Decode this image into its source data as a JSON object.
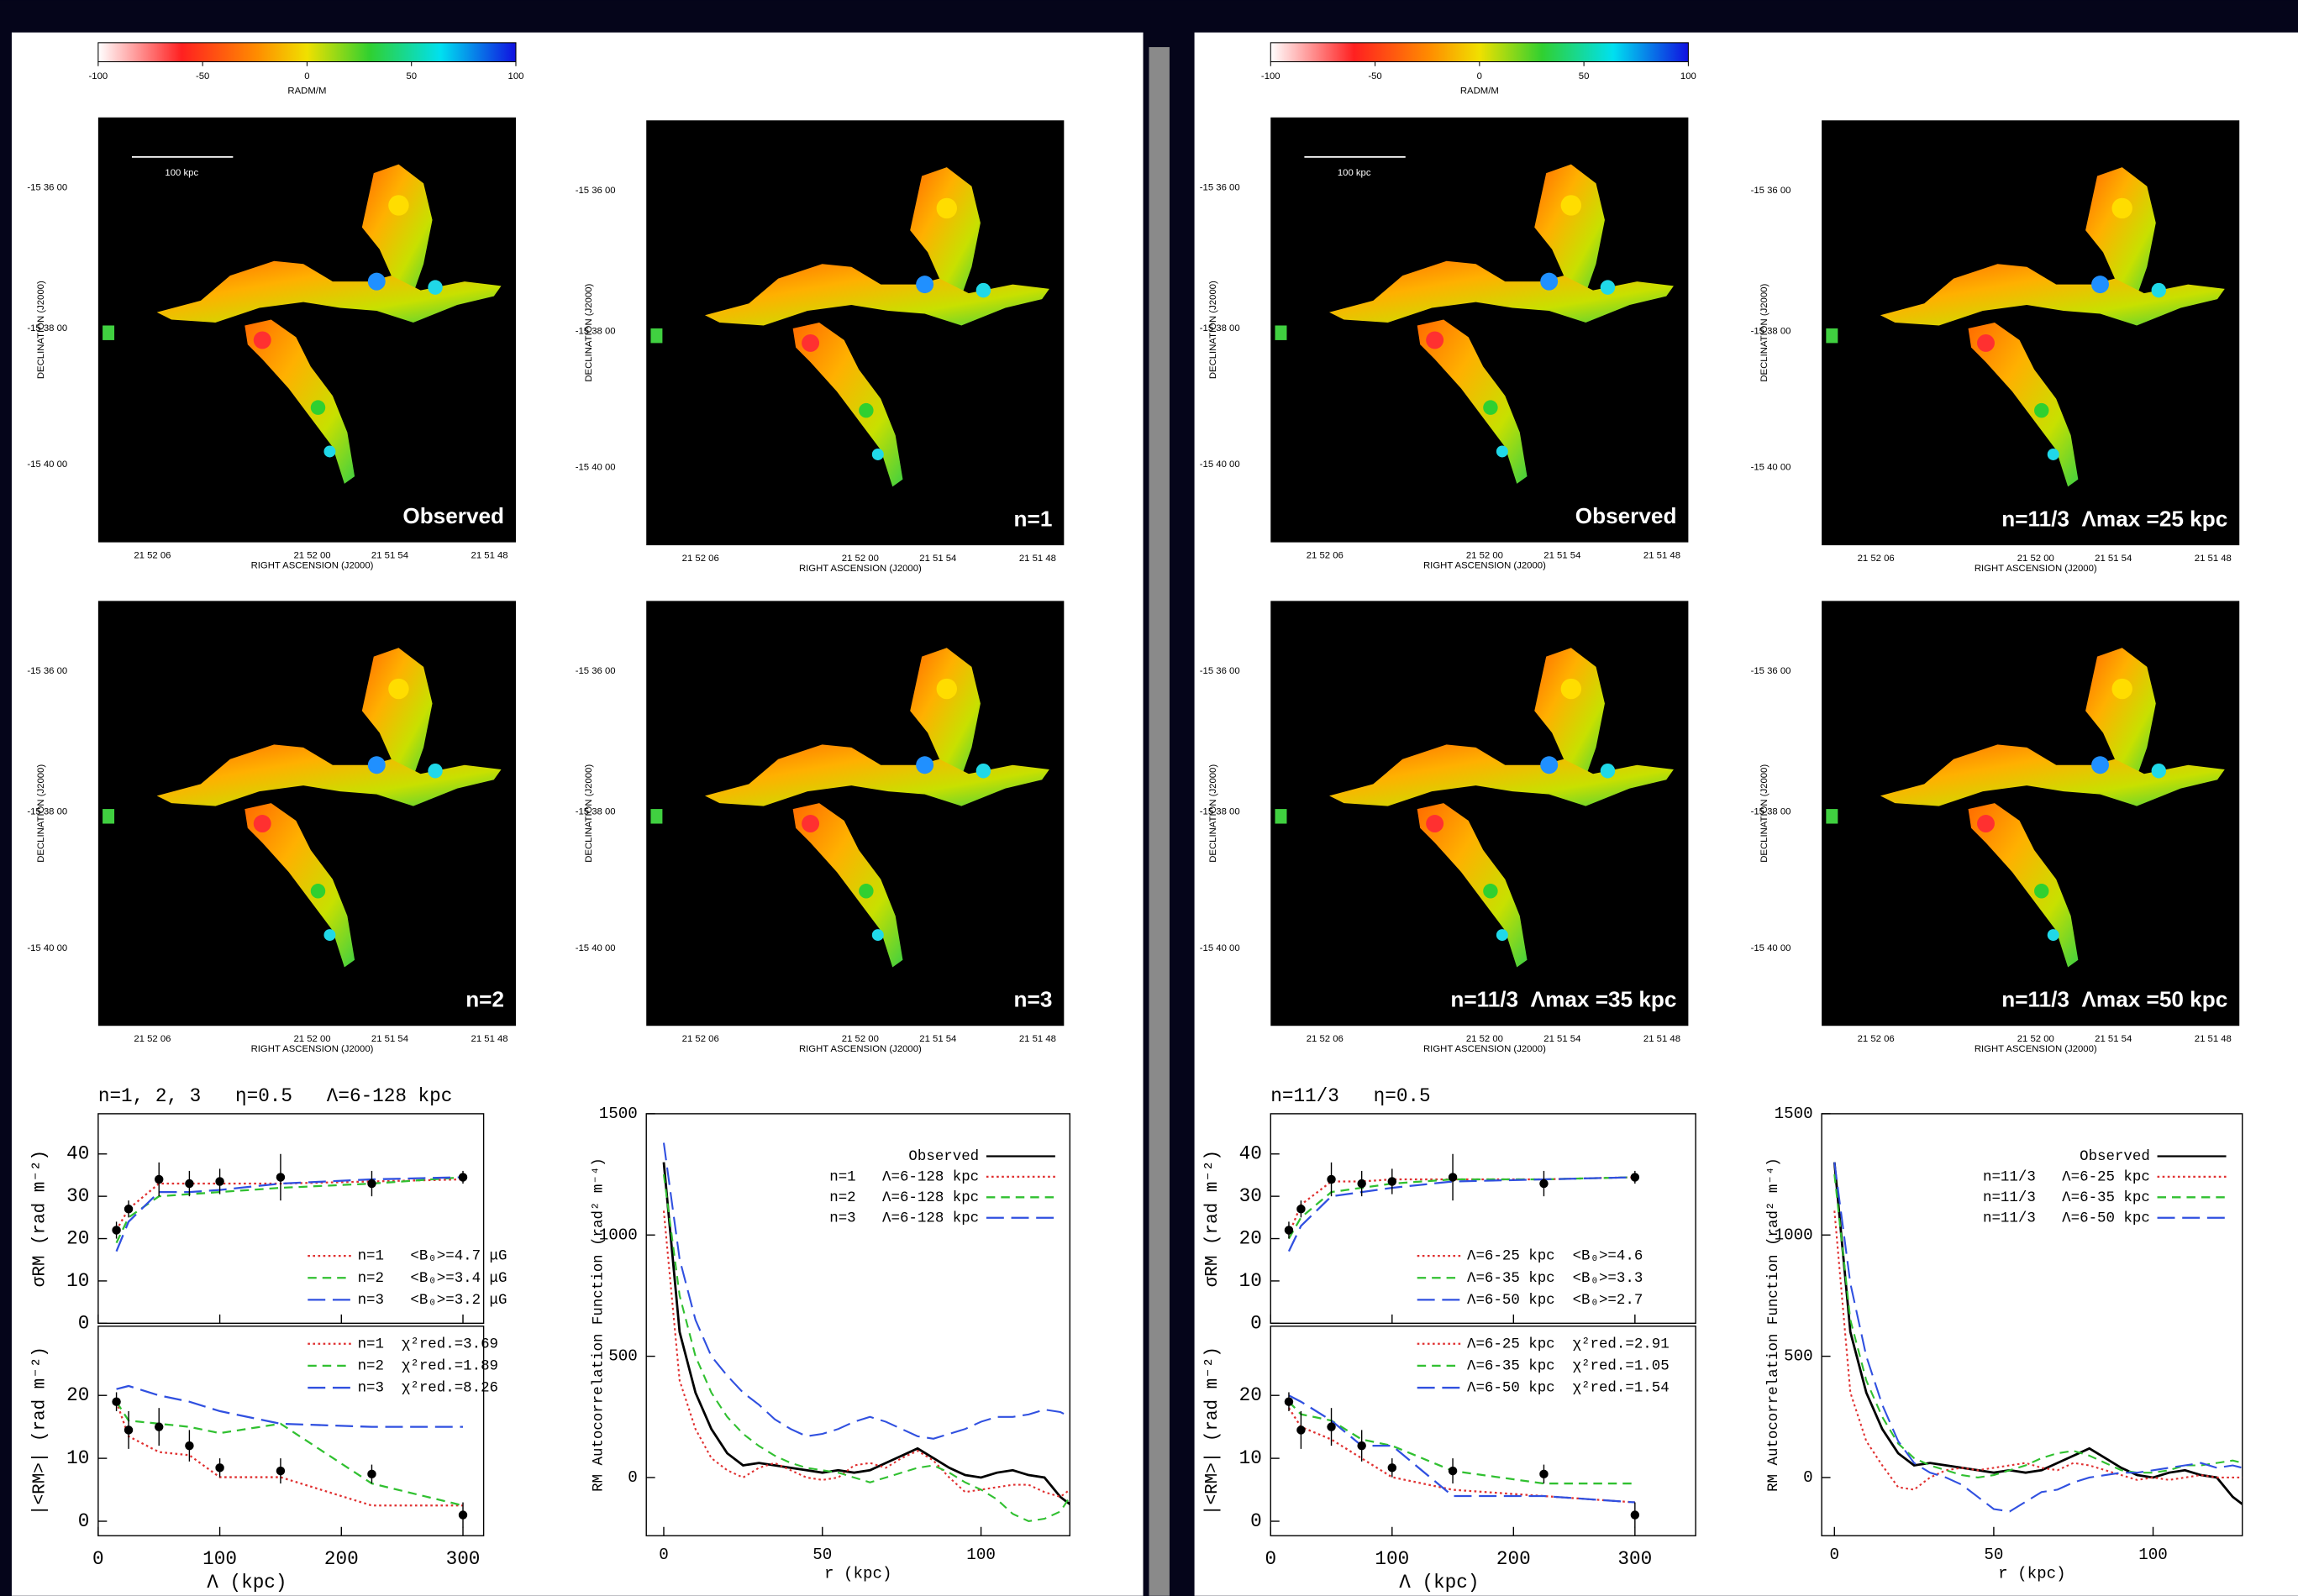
{
  "chart_data": [
    {
      "type": "colorbar",
      "label": "RADM/M",
      "xlim": [
        -100,
        100
      ],
      "xticks": [
        -100,
        -50,
        0,
        50,
        100
      ]
    },
    {
      "type": "colorbar",
      "label": "RADM/M",
      "xlim": [
        -100,
        100
      ],
      "xticks": [
        -100,
        -50,
        0,
        50,
        100
      ]
    },
    {
      "type": "error-line",
      "title": "n=1, 2, 3   η=0.5   Λ=6-128 kpc",
      "xlabel": "Λ (kpc)",
      "x": [
        15,
        25,
        50,
        75,
        100,
        150,
        225,
        300
      ],
      "xlim": [
        0,
        317
      ],
      "xticks": [
        0,
        100,
        200,
        300
      ],
      "panels": [
        {
          "ylabel": "σRM (rad m⁻²)",
          "ylim": [
            0,
            49.5
          ],
          "yticks": [
            0,
            10,
            20,
            30,
            40
          ],
          "legend": "lower right",
          "observed": {
            "color": "#000000",
            "values": [
              22,
              27,
              34,
              33,
              33.5,
              34.5,
              33,
              34.5
            ],
            "errors": [
              2,
              2,
              4,
              3,
              3,
              5.5,
              3,
              1.5
            ]
          },
          "series": [
            {
              "name": "n=1   <B₀>=4.7 μG",
              "color": "#e03030",
              "dash": "dotted",
              "values": [
                22,
                27,
                33,
                33,
                33,
                33,
                33.5,
                34
              ]
            },
            {
              "name": "n=2   <B₀>=3.4 μG",
              "color": "#30c030",
              "dash": "dashed",
              "values": [
                19,
                25,
                30,
                30.5,
                31,
                32,
                33,
                34.5
              ]
            },
            {
              "name": "n=3   <B₀>=3.2 μG",
              "color": "#3050e0",
              "dash": "long-dashed",
              "values": [
                17,
                24,
                31,
                31,
                31.5,
                33,
                34,
                34.5
              ]
            }
          ]
        },
        {
          "ylabel": "|<RM>| (rad m⁻²)",
          "ylim": [
            -2.3,
            31
          ],
          "yticks": [
            0,
            10,
            20
          ],
          "legend": "upper right",
          "observed": {
            "color": "#000000",
            "values": [
              19,
              14.5,
              15,
              12,
              8.5,
              8,
              7.5,
              1
            ],
            "errors": [
              1.5,
              3,
              3,
              2.5,
              1.5,
              2,
              1.5,
              2
            ]
          },
          "series": [
            {
              "name": "n=1  χ²red.=3.69",
              "color": "#e03030",
              "dash": "dotted",
              "values": [
                19,
                13.5,
                11,
                10.5,
                7,
                7,
                2.5,
                2.5
              ]
            },
            {
              "name": "n=2  χ²red.=1.89",
              "color": "#30c030",
              "dash": "dashed",
              "values": [
                19,
                16,
                15.5,
                15,
                14,
                15.5,
                6,
                2.5
              ]
            },
            {
              "name": "n=3  χ²red.=8.26",
              "color": "#3050e0",
              "dash": "long-dashed",
              "values": [
                21,
                21.5,
                20,
                19,
                17.5,
                15.5,
                15,
                15
              ]
            }
          ]
        }
      ]
    },
    {
      "type": "line",
      "xlabel": "r (kpc)",
      "ylabel": "RM Autocorrelation Function (rad² m⁻⁴)",
      "x": [
        0,
        5,
        10,
        15,
        20,
        25,
        30,
        35,
        40,
        45,
        50,
        55,
        60,
        65,
        70,
        75,
        80,
        85,
        90,
        95,
        100,
        105,
        110,
        115,
        120,
        125,
        128
      ],
      "xlim": [
        -5.5,
        128
      ],
      "xticks": [
        0,
        50,
        100
      ],
      "ylim": [
        -240,
        1500
      ],
      "yticks": [
        0,
        500,
        1000,
        1500
      ],
      "legend": "upper right",
      "series": [
        {
          "name": "Observed",
          "color": "#000000",
          "dash": "solid",
          "values": [
            1300,
            600,
            350,
            200,
            100,
            50,
            60,
            50,
            40,
            30,
            20,
            30,
            20,
            30,
            60,
            90,
            120,
            80,
            40,
            10,
            0,
            20,
            30,
            10,
            0,
            -80,
            -110
          ]
        },
        {
          "name": "n=1   Λ=6-128 kpc",
          "color": "#e03030",
          "dash": "dotted",
          "values": [
            1100,
            400,
            200,
            80,
            30,
            0,
            40,
            60,
            30,
            0,
            -10,
            0,
            50,
            60,
            40,
            80,
            110,
            70,
            0,
            -60,
            -50,
            -40,
            -30,
            -30,
            -60,
            -80,
            -50
          ]
        },
        {
          "name": "n=2   Λ=6-128 kpc",
          "color": "#30c030",
          "dash": "dashed",
          "values": [
            1250,
            750,
            500,
            350,
            250,
            180,
            130,
            90,
            60,
            40,
            30,
            20,
            0,
            -20,
            0,
            20,
            40,
            50,
            20,
            -20,
            -50,
            -90,
            -150,
            -180,
            -170,
            -140,
            -80
          ]
        },
        {
          "name": "n=3   Λ=6-128 kpc",
          "color": "#3050e0",
          "dash": "long-dashed",
          "values": [
            1380,
            900,
            650,
            500,
            420,
            350,
            300,
            240,
            200,
            170,
            180,
            200,
            230,
            250,
            230,
            200,
            170,
            160,
            180,
            200,
            230,
            250,
            250,
            260,
            280,
            270,
            250
          ]
        }
      ]
    },
    {
      "type": "error-line",
      "title": "n=11/3   η=0.5",
      "xlabel": "Λ (kpc)",
      "x": [
        15,
        25,
        50,
        75,
        100,
        150,
        225,
        300
      ],
      "xlim": [
        0,
        350
      ],
      "xticks": [
        0,
        100,
        200,
        300
      ],
      "panels": [
        {
          "ylabel": "σRM (rad m⁻²)",
          "ylim": [
            0,
            49.5
          ],
          "yticks": [
            0,
            10,
            20,
            30,
            40
          ],
          "legend": "lower right",
          "observed": {
            "color": "#000000",
            "values": [
              22,
              27,
              34,
              33,
              33.5,
              34.5,
              33,
              34.5
            ],
            "errors": [
              2,
              2,
              4,
              3,
              3,
              5.5,
              3,
              1.5
            ]
          },
          "series": [
            {
              "name": "Λ=6-25 kpc  <B₀>=4.6",
              "color": "#e03030",
              "dash": "dotted",
              "values": [
                21,
                28,
                33.5,
                33.5,
                34,
                34,
                34,
                34.5
              ]
            },
            {
              "name": "Λ=6-35 kpc  <B₀>=3.3",
              "color": "#30c030",
              "dash": "dashed",
              "values": [
                20,
                25,
                31,
                32,
                33,
                34,
                34,
                34.5
              ]
            },
            {
              "name": "Λ=6-50 kpc  <B₀>=2.7",
              "color": "#3050e0",
              "dash": "long-dashed",
              "values": [
                17,
                23,
                30,
                31,
                32,
                33.5,
                34,
                34.5
              ]
            }
          ]
        },
        {
          "ylabel": "|<RM>| (rad m⁻²)",
          "ylim": [
            -2.3,
            31
          ],
          "yticks": [
            0,
            10,
            20
          ],
          "legend": "upper right",
          "observed": {
            "color": "#000000",
            "values": [
              19,
              14.5,
              15,
              12,
              8.5,
              8,
              7.5,
              1
            ],
            "errors": [
              1.5,
              3,
              3,
              2.5,
              1.5,
              2,
              1.5,
              2
            ]
          },
          "series": [
            {
              "name": "Λ=6-25 kpc  χ²red.=2.91",
              "color": "#e03030",
              "dash": "dotted",
              "values": [
                18,
                15,
                13,
                10,
                7,
                5,
                4,
                3
              ]
            },
            {
              "name": "Λ=6-35 kpc  χ²red.=1.05",
              "color": "#30c030",
              "dash": "dashed",
              "values": [
                19,
                17,
                16,
                13,
                12,
                8,
                6,
                6
              ]
            },
            {
              "name": "Λ=6-50 kpc  χ²red.=1.54",
              "color": "#3050e0",
              "dash": "long-dashed",
              "values": [
                20,
                19,
                16,
                12,
                12,
                4,
                4,
                3
              ]
            }
          ]
        }
      ]
    },
    {
      "type": "line",
      "xlabel": "r (kpc)",
      "ylabel": "RM Autocorrelation Function (rad² m⁻⁴)",
      "x": [
        0,
        5,
        10,
        15,
        20,
        25,
        30,
        35,
        40,
        45,
        50,
        55,
        60,
        65,
        70,
        75,
        80,
        85,
        90,
        95,
        100,
        105,
        110,
        115,
        120,
        125,
        128
      ],
      "xlim": [
        -4,
        128
      ],
      "xticks": [
        0,
        50,
        100
      ],
      "ylim": [
        -240,
        1500
      ],
      "yticks": [
        0,
        500,
        1000,
        1500
      ],
      "legend": "upper right",
      "series": [
        {
          "name": "Observed",
          "color": "#000000",
          "dash": "solid",
          "values": [
            1300,
            600,
            350,
            200,
            100,
            50,
            60,
            50,
            40,
            30,
            20,
            30,
            20,
            30,
            60,
            90,
            120,
            80,
            40,
            10,
            0,
            20,
            30,
            10,
            0,
            -80,
            -110
          ]
        },
        {
          "name": "n=11/3   Λ=6-25 kpc",
          "color": "#e03030",
          "dash": "dotted",
          "values": [
            1100,
            350,
            150,
            50,
            -40,
            -50,
            0,
            30,
            40,
            30,
            40,
            50,
            60,
            40,
            30,
            60,
            50,
            30,
            10,
            -10,
            0,
            -10,
            0,
            10,
            0,
            0,
            0
          ]
        },
        {
          "name": "n=11/3   Λ=6-35 kpc",
          "color": "#30c030",
          "dash": "dashed",
          "values": [
            1250,
            650,
            400,
            250,
            140,
            80,
            50,
            30,
            10,
            0,
            10,
            30,
            50,
            80,
            100,
            110,
            90,
            60,
            30,
            20,
            20,
            30,
            50,
            50,
            60,
            70,
            60
          ]
        },
        {
          "name": "n=11/3   Λ=6-50 kpc",
          "color": "#3050e0",
          "dash": "long-dashed",
          "values": [
            1300,
            800,
            500,
            300,
            150,
            60,
            20,
            0,
            -30,
            -80,
            -130,
            -140,
            -100,
            -60,
            -50,
            -20,
            0,
            10,
            20,
            20,
            30,
            40,
            50,
            60,
            40,
            50,
            40
          ]
        }
      ]
    }
  ],
  "map_axes": {
    "xtick_labels": [
      "21 52 06",
      "21 52 00",
      "21 51 54",
      "21 51 48"
    ],
    "ytick_labels": [
      "-15 36 00",
      "-15 38 00",
      "-15 40 00"
    ],
    "xlabel": "RIGHT ASCENSION (J2000)",
    "ylabel": "DECLINATION (J2000)"
  },
  "maps": [
    {
      "label": "Observed",
      "scalebar": "100 kpc"
    },
    {
      "label": "n=1"
    },
    {
      "label": "n=2"
    },
    {
      "label": "n=3"
    },
    {
      "label": "Observed",
      "scalebar": "100 kpc"
    },
    {
      "label": "n=11/3  Λmax =25 kpc"
    },
    {
      "label": "n=11/3  Λmax =35 kpc"
    },
    {
      "label": "n=11/3  Λmax =50 kpc"
    }
  ]
}
